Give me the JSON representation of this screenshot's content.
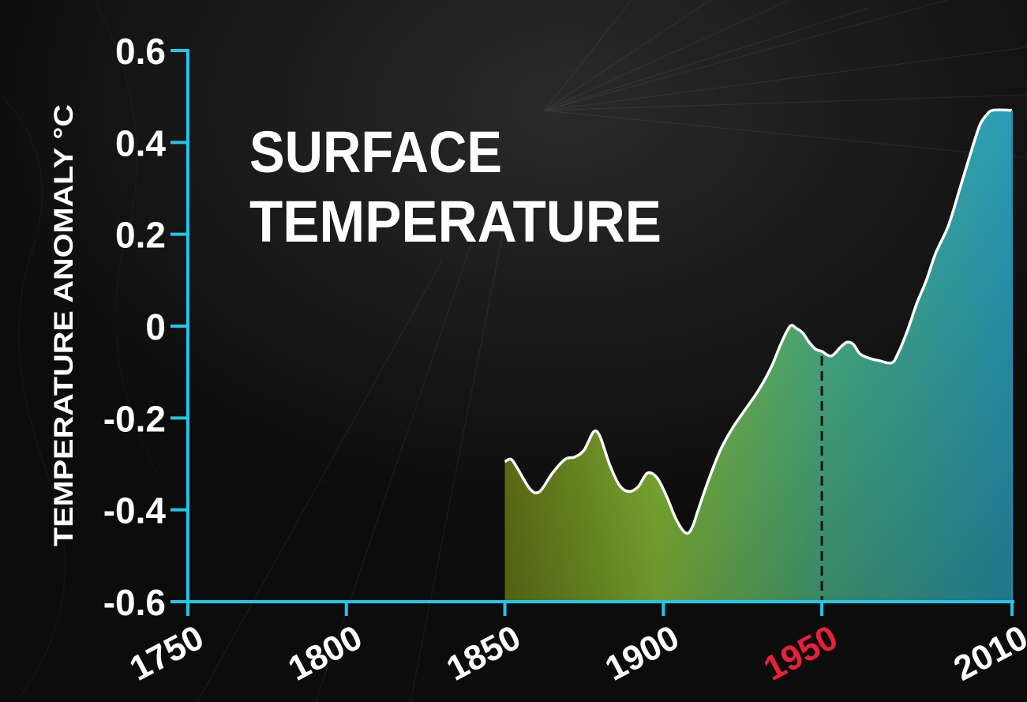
{
  "colors": {
    "axis": "#22c6e8",
    "curve": "#ffffff",
    "highlight": "#e8203a",
    "fill_start": "#6b7f18",
    "fill_mid": "#8fc63a",
    "fill_end": "#2a9bb8"
  },
  "chart_data": {
    "type": "area",
    "title": "SURFACE TEMPERATURE",
    "title_lines": [
      "SURFACE",
      "TEMPERATURE"
    ],
    "ylabel": "TEMPERATURE ANOMALY °C",
    "xlabel": "",
    "xlim": [
      1750,
      2010
    ],
    "ylim": [
      -0.6,
      0.6
    ],
    "x_ticks": [
      1750,
      1800,
      1850,
      1900,
      1950,
      2010
    ],
    "x_tick_labels": [
      "1750",
      "1800",
      "1850",
      "1900",
      "1950",
      "2010"
    ],
    "highlight_tick": "1950",
    "y_ticks": [
      -0.6,
      -0.4,
      -0.2,
      0,
      0.2,
      0.4,
      0.6
    ],
    "y_tick_labels": [
      "-0.6",
      "-0.4",
      "-0.2",
      "0",
      "0.2",
      "0.4",
      "0.6"
    ],
    "reference_line_x": 1950,
    "grid": false,
    "legend": "none",
    "series": [
      {
        "x": [
          1850,
          1852,
          1854,
          1858,
          1861,
          1865,
          1869,
          1872,
          1875,
          1878,
          1880,
          1883,
          1886,
          1889,
          1892,
          1895,
          1898,
          1901,
          1904,
          1907,
          1909,
          1911,
          1914,
          1918,
          1922,
          1926,
          1930,
          1934,
          1937,
          1940,
          1942,
          1944,
          1946,
          1948,
          1950,
          1953,
          1956,
          1958,
          1960,
          1962,
          1965,
          1968,
          1972,
          1974,
          1977,
          1980,
          1983,
          1986,
          1990,
          1994,
          1998,
          2000,
          2002,
          2004,
          2010
        ],
        "y": [
          -0.295,
          -0.29,
          -0.31,
          -0.355,
          -0.36,
          -0.32,
          -0.29,
          -0.285,
          -0.27,
          -0.23,
          -0.24,
          -0.3,
          -0.345,
          -0.36,
          -0.35,
          -0.32,
          -0.33,
          -0.37,
          -0.42,
          -0.45,
          -0.44,
          -0.4,
          -0.34,
          -0.27,
          -0.22,
          -0.18,
          -0.14,
          -0.09,
          -0.04,
          0.0,
          -0.005,
          -0.015,
          -0.035,
          -0.05,
          -0.055,
          -0.065,
          -0.045,
          -0.035,
          -0.04,
          -0.06,
          -0.07,
          -0.075,
          -0.08,
          -0.06,
          -0.01,
          0.05,
          0.1,
          0.16,
          0.22,
          0.31,
          0.4,
          0.44,
          0.46,
          0.47,
          0.47
        ]
      }
    ]
  }
}
